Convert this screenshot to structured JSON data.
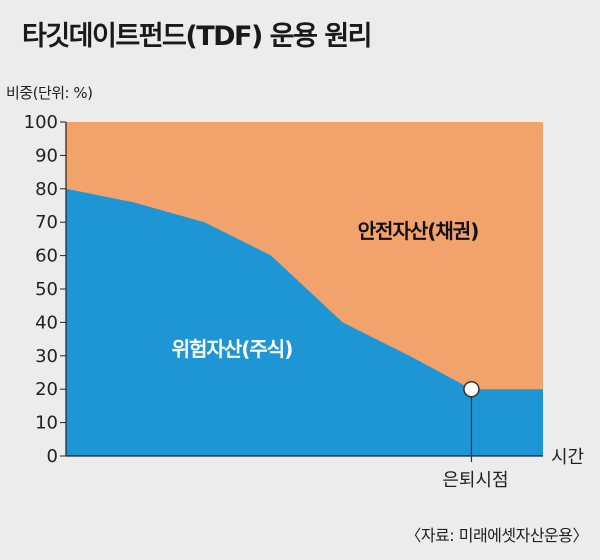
{
  "title": "타깃데이트펀드(TDF) 운용 원리",
  "source": "〈자료: 미래에셋자산운용〉",
  "chart_data": {
    "type": "area",
    "title": "타깃데이트펀드(TDF) 운용 원리",
    "ylabel": "비중(단위: %)",
    "xlabel": "시간",
    "ylim": [
      0,
      100
    ],
    "yticks": [
      0,
      10,
      20,
      30,
      40,
      50,
      60,
      70,
      80,
      90,
      100
    ],
    "grid": false,
    "x": [
      0,
      0.14,
      0.29,
      0.43,
      0.58,
      0.72,
      0.85,
      1.0
    ],
    "series": [
      {
        "name": "위험자산(주식)",
        "values": [
          80,
          76,
          70,
          60,
          40,
          30,
          20,
          20
        ],
        "color": "#1e95d4"
      },
      {
        "name": "안전자산(채권)",
        "values": [
          20,
          24,
          30,
          40,
          60,
          70,
          80,
          80
        ],
        "color": "#f2a36b"
      }
    ],
    "annotations": [
      {
        "label": "은퇴시점",
        "x": 0.85,
        "y": 20
      }
    ]
  }
}
